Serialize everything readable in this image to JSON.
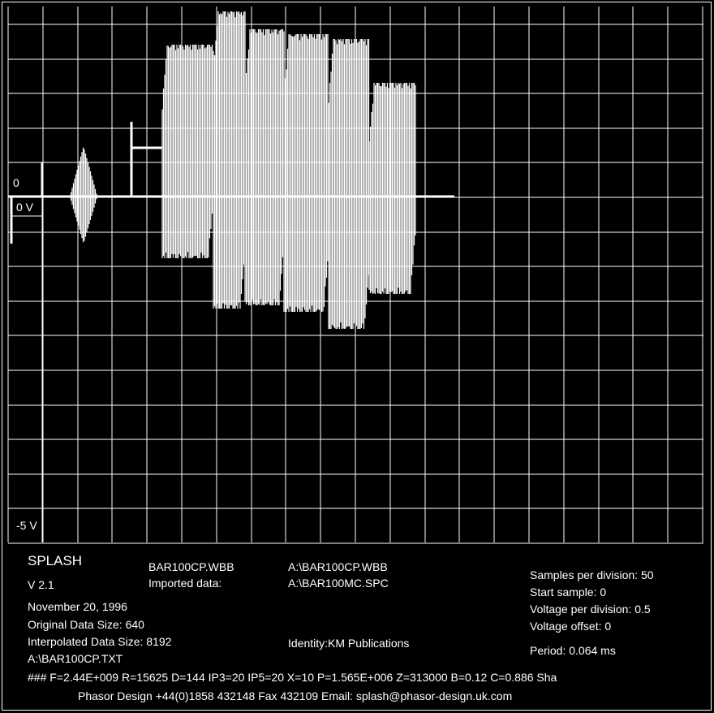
{
  "scope": {
    "marker_zero": "0",
    "marker_zero_v": "0 V",
    "marker_minus5": "-5 V"
  },
  "chart_data": {
    "type": "line",
    "title": "",
    "xlabel": "",
    "ylabel": "",
    "samples_per_division": 50,
    "voltage_per_division": 0.5,
    "y_axis_labels": [
      "0 V",
      "-5 V"
    ]
  },
  "info": {
    "app_name": "SPLASH",
    "version": "V 2.1",
    "date": "November 20, 1996",
    "original_size": "Original Data Size: 640",
    "interpolated_size": "Interpolated Data Size: 8192",
    "txt_file": "A:\\BAR100CP.TXT",
    "file1": "BAR100CP.WBB",
    "imported_label": "Imported data:",
    "path1": "A:\\BAR100CP.WBB",
    "path2": "A:\\BAR100MC.SPC",
    "identity": "Identity:KM Publications",
    "samples_per_div": "Samples per division: 50",
    "start_sample": "Start sample: 0",
    "voltage_per_div": "Voltage per division: 0.5",
    "voltage_offset": "Voltage offset: 0",
    "period": "Period: 0.064 ms",
    "params": "###  F=2.44E+009  R=15625  D=144  IP3=20  IP5=20  X=10  P=1.565E+006  Z=313000  B=0.12  C=0.886  Sha",
    "contact": "Phasor Design  +44(0)1858 432148 Fax 432109 Email: splash@phasor-design.uk.com"
  }
}
